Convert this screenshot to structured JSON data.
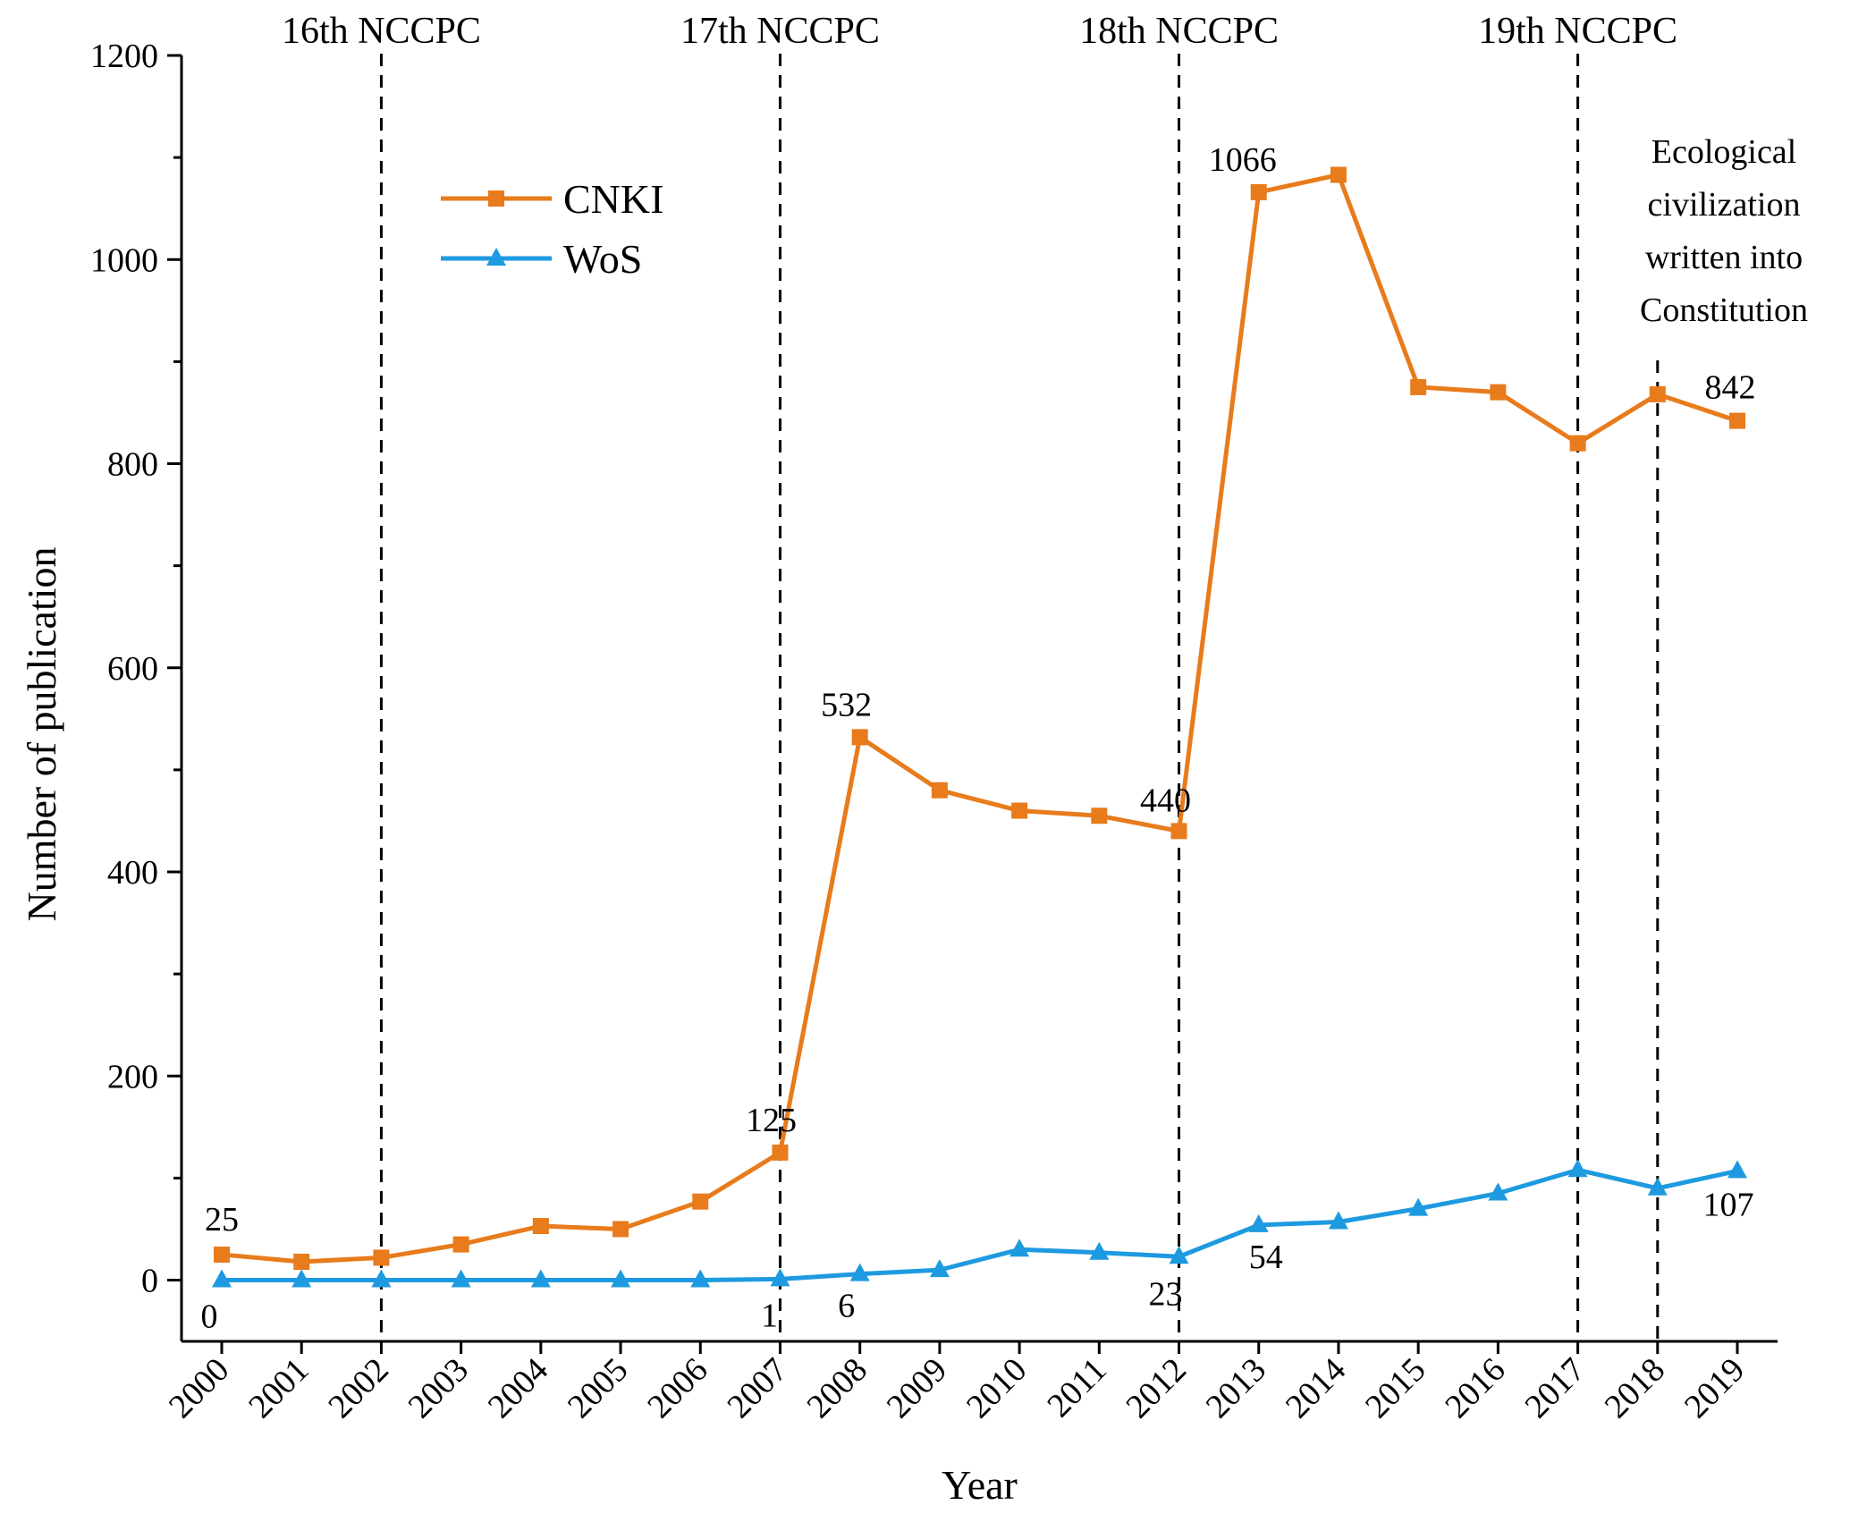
{
  "chart_data": {
    "type": "line",
    "title": "",
    "xlabel": "Year",
    "ylabel": "Number of publication",
    "ylim": [
      -60,
      1200
    ],
    "yticks": [
      0,
      200,
      400,
      600,
      800,
      1000,
      1200
    ],
    "categories": [
      "2000",
      "2001",
      "2002",
      "2003",
      "2004",
      "2005",
      "2006",
      "2007",
      "2008",
      "2009",
      "2010",
      "2011",
      "2012",
      "2013",
      "2014",
      "2015",
      "2016",
      "2017",
      "2018",
      "2019"
    ],
    "series": [
      {
        "name": "CNKI",
        "color": "#e87b1c",
        "marker": "square",
        "values": [
          25,
          18,
          22,
          35,
          53,
          50,
          77,
          125,
          532,
          480,
          460,
          455,
          440,
          1066,
          1083,
          875,
          870,
          820,
          868,
          842
        ]
      },
      {
        "name": "WoS",
        "color": "#1e9ae0",
        "marker": "triangle",
        "values": [
          0,
          0,
          0,
          0,
          0,
          0,
          0,
          1,
          6,
          10,
          30,
          27,
          23,
          54,
          57,
          70,
          85,
          108,
          90,
          107
        ]
      }
    ],
    "legend": {
      "position": "top-left"
    },
    "events": [
      {
        "year": "2002",
        "label": "16th NCCPC"
      },
      {
        "year": "2007",
        "label": "17th NCCPC"
      },
      {
        "year": "2012",
        "label": "18th NCCPC"
      },
      {
        "year": "2017",
        "label": "19th NCCPC"
      },
      {
        "year": "2018",
        "label": "Ecological civilization written into Constitution"
      }
    ],
    "annotation_lines": [
      "Ecological",
      "civilization",
      "written into",
      "Constitution"
    ],
    "data_labels": [
      {
        "series": "CNKI",
        "year": "2000",
        "text": "25"
      },
      {
        "series": "CNKI",
        "year": "2007",
        "text": "125"
      },
      {
        "series": "CNKI",
        "year": "2008",
        "text": "532"
      },
      {
        "series": "CNKI",
        "year": "2012",
        "text": "440"
      },
      {
        "series": "CNKI",
        "year": "2013",
        "text": "1066"
      },
      {
        "series": "CNKI",
        "year": "2019",
        "text": "842"
      },
      {
        "series": "WoS",
        "year": "2000",
        "text": "0"
      },
      {
        "series": "WoS",
        "year": "2007",
        "text": "1"
      },
      {
        "series": "WoS",
        "year": "2008",
        "text": "6"
      },
      {
        "series": "WoS",
        "year": "2012",
        "text": "23"
      },
      {
        "series": "WoS",
        "year": "2013",
        "text": "54"
      },
      {
        "series": "WoS",
        "year": "2019",
        "text": "107"
      }
    ]
  }
}
